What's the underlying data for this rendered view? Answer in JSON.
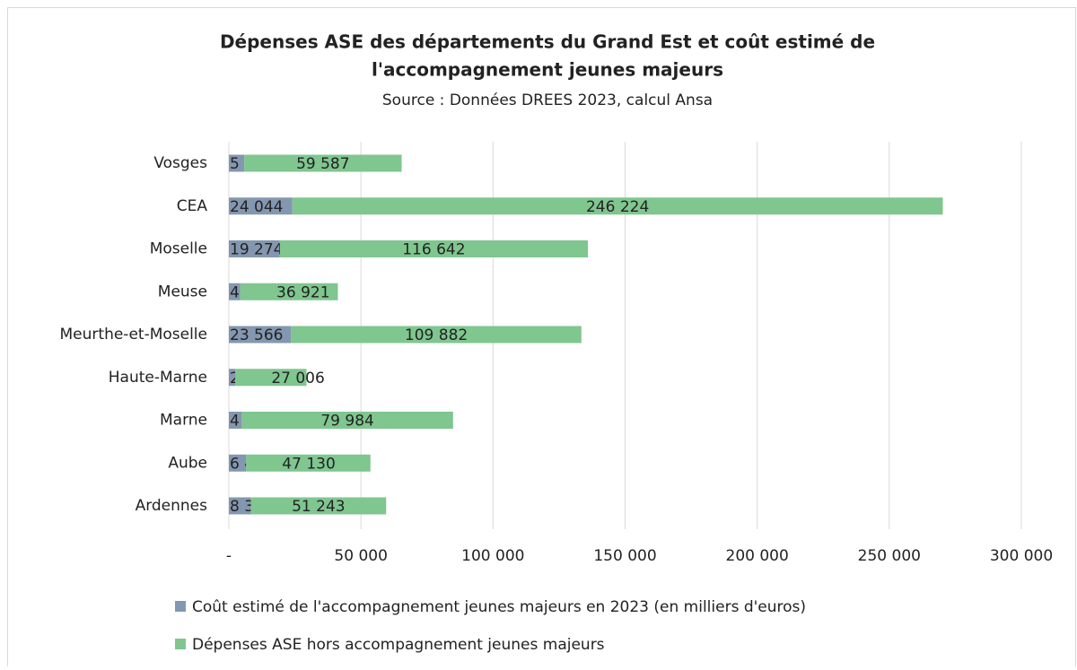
{
  "chart_data": {
    "type": "stacked_barh",
    "title": [
      "Dépenses ASE des départements du Grand Est et coût estimé de",
      "l'accompagnement jeunes majeurs"
    ],
    "subtitle": "Source : Données DREES 2023, calcul Ansa",
    "categories": [
      "Vosges",
      "CEA",
      "Moselle",
      "Meuse",
      "Meurthe-et-Moselle",
      "Haute-Marne",
      "Marne",
      "Aube",
      "Ardennes"
    ],
    "series": [
      {
        "name": "Coût estimé de l'accompagnement jeunes majeurs en 2023 (en milliers d'euros)",
        "color": "#8497b0",
        "values": [
          5821,
          24044,
          19274,
          4347,
          23566,
          2402,
          4891,
          6473,
          8301
        ],
        "value_labels": [
          "5 821",
          "24 044",
          "19 274",
          "4 347",
          "23 566",
          "2 402",
          "4 891",
          "6 473",
          "8 301"
        ]
      },
      {
        "name": "Dépenses ASE hors accompagnement jeunes majeurs",
        "color": "#7fc68f",
        "values": [
          59587,
          246224,
          116642,
          36921,
          109882,
          27006,
          79984,
          47130,
          51243
        ],
        "value_labels": [
          "59 587",
          "246 224",
          "116 642",
          "36 921",
          "109 882",
          "27 006",
          "79 984",
          "47 130",
          "51 243"
        ]
      }
    ],
    "xlim": [
      0,
      300000
    ],
    "xticks": [
      {
        "value": 0,
        "label": "-"
      },
      {
        "value": 50000,
        "label": "50 000"
      },
      {
        "value": 100000,
        "label": "100 000"
      },
      {
        "value": 150000,
        "label": "150 000"
      },
      {
        "value": 200000,
        "label": "200 000"
      },
      {
        "value": 250000,
        "label": "250 000"
      },
      {
        "value": 300000,
        "label": "300 000"
      }
    ],
    "grid": true,
    "legend": "bottom"
  }
}
